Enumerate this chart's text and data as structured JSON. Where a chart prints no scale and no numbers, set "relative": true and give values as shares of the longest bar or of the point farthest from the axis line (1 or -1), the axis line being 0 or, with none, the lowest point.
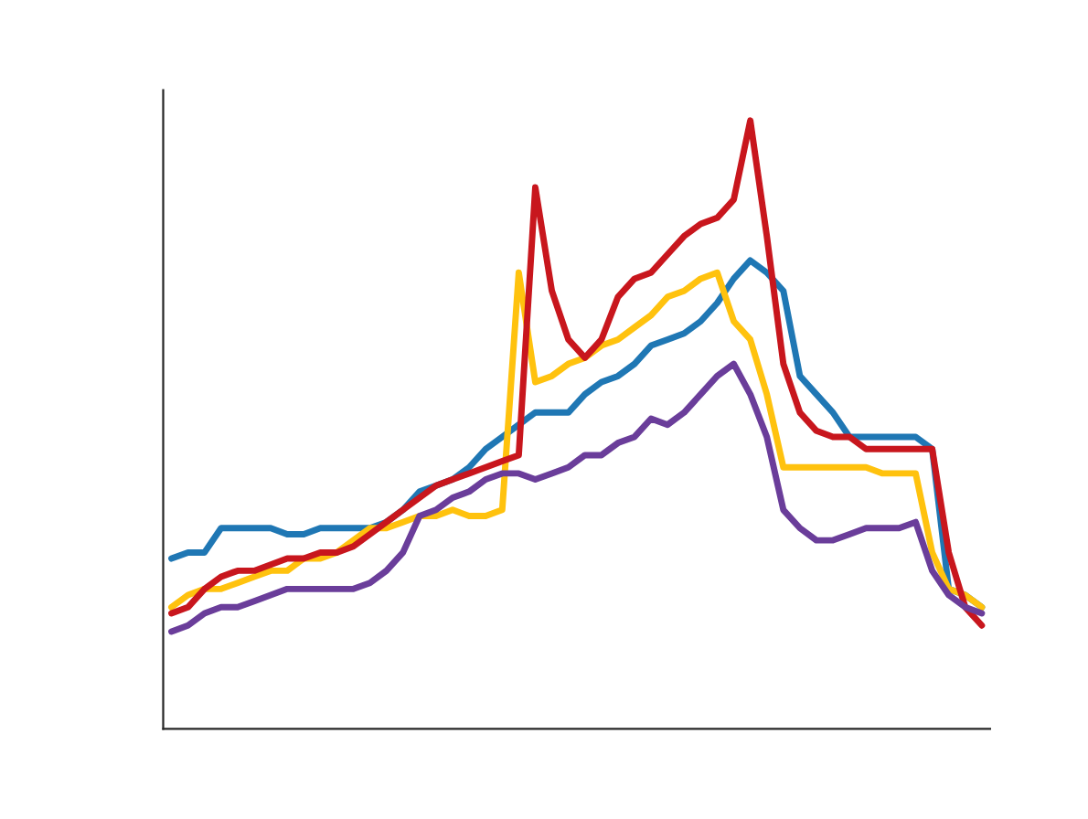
{
  "chart_data": {
    "type": "line",
    "relative": true,
    "categories": [
      null,
      null,
      null,
      null,
      null,
      null,
      null,
      null,
      null,
      null,
      null,
      null,
      null,
      null,
      null,
      null,
      null,
      null,
      null,
      null,
      null,
      null,
      null,
      null,
      null,
      null,
      null,
      null,
      null,
      null,
      null,
      null,
      null,
      null,
      null,
      null,
      null,
      null,
      null,
      null,
      null,
      null,
      null,
      null,
      null,
      null,
      null,
      null,
      null,
      null
    ],
    "series": [
      {
        "color": "#1f77b4",
        "values": [
          0.28,
          0.29,
          0.29,
          0.33,
          0.33,
          0.33,
          0.33,
          0.32,
          0.32,
          0.33,
          0.33,
          0.33,
          0.33,
          0.34,
          0.36,
          0.39,
          0.4,
          0.41,
          0.43,
          0.46,
          0.48,
          0.5,
          0.52,
          0.52,
          0.52,
          0.55,
          0.57,
          0.58,
          0.6,
          0.63,
          0.64,
          0.65,
          0.67,
          0.7,
          0.74,
          0.77,
          0.75,
          0.72,
          0.58,
          0.55,
          0.52,
          0.48,
          0.48,
          0.48,
          0.48,
          0.48,
          0.46,
          0.23,
          0.22,
          0.2
        ]
      },
      {
        "color": "#ffc20e",
        "values": [
          0.2,
          0.22,
          0.23,
          0.23,
          0.24,
          0.25,
          0.26,
          0.26,
          0.28,
          0.28,
          0.29,
          0.31,
          0.33,
          0.33,
          0.34,
          0.35,
          0.35,
          0.36,
          0.35,
          0.35,
          0.36,
          0.75,
          0.57,
          0.58,
          0.6,
          0.61,
          0.63,
          0.64,
          0.66,
          0.68,
          0.71,
          0.72,
          0.74,
          0.75,
          0.67,
          0.64,
          0.55,
          0.43,
          0.43,
          0.43,
          0.43,
          0.43,
          0.43,
          0.42,
          0.42,
          0.42,
          0.29,
          0.23,
          0.22,
          0.2
        ]
      },
      {
        "color": "#c8161d",
        "values": [
          0.19,
          0.2,
          0.23,
          0.25,
          0.26,
          0.26,
          0.27,
          0.28,
          0.28,
          0.29,
          0.29,
          0.3,
          0.32,
          0.34,
          0.36,
          0.38,
          0.4,
          0.41,
          0.42,
          0.43,
          0.44,
          0.45,
          0.89,
          0.72,
          0.64,
          0.61,
          0.64,
          0.71,
          0.74,
          0.75,
          0.78,
          0.81,
          0.83,
          0.84,
          0.87,
          1,
          0.81,
          0.6,
          0.52,
          0.49,
          0.48,
          0.48,
          0.46,
          0.46,
          0.46,
          0.46,
          0.46,
          0.29,
          0.2,
          0.17
        ]
      },
      {
        "color": "#6a3d9a",
        "values": [
          0.16,
          0.17,
          0.19,
          0.2,
          0.2,
          0.21,
          0.22,
          0.23,
          0.23,
          0.23,
          0.23,
          0.23,
          0.24,
          0.26,
          0.29,
          0.35,
          0.36,
          0.38,
          0.39,
          0.41,
          0.42,
          0.42,
          0.41,
          0.42,
          0.43,
          0.45,
          0.45,
          0.47,
          0.48,
          0.51,
          0.5,
          0.52,
          0.55,
          0.58,
          0.6,
          0.55,
          0.48,
          0.36,
          0.33,
          0.31,
          0.31,
          0.32,
          0.33,
          0.33,
          0.33,
          0.34,
          0.26,
          0.22,
          0.2,
          0.19
        ]
      }
    ]
  }
}
